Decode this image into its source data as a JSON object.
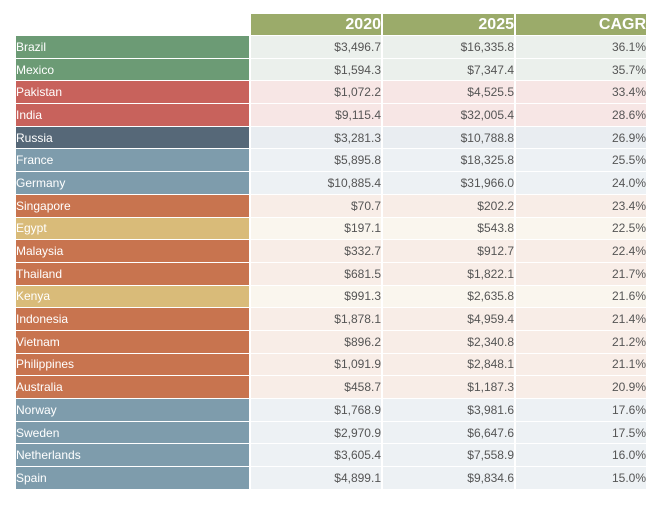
{
  "chart_data": {
    "type": "table",
    "columns": [
      "",
      "2020",
      "2025",
      "CAGR"
    ],
    "colors": {
      "header": "#9bab6a",
      "green": "#6c9b75",
      "red": "#c8625c",
      "darkslate": "#566878",
      "slate": "#7e9cac",
      "orange": "#c8744f",
      "sand": "#d9bb79"
    },
    "rows": [
      {
        "country": "Brazil",
        "v2020": "$3,496.7",
        "v2025": "$16,335.8",
        "cagr": "36.1%",
        "color": "#6c9b75",
        "tint": "#ebf0ec"
      },
      {
        "country": "Mexico",
        "v2020": "$1,594.3",
        "v2025": "$7,347.4",
        "cagr": "35.7%",
        "color": "#6c9b75",
        "tint": "#ebf0ec"
      },
      {
        "country": "Pakistan",
        "v2020": "$1,072.2",
        "v2025": "$4,525.5",
        "cagr": "33.4%",
        "color": "#c8625c",
        "tint": "#f7e6e5"
      },
      {
        "country": "India",
        "v2020": "$9,115.4",
        "v2025": "$32,005.4",
        "cagr": "28.6%",
        "color": "#c8625c",
        "tint": "#f7e6e5"
      },
      {
        "country": "Russia",
        "v2020": "$3,281.3",
        "v2025": "$10,788.8",
        "cagr": "26.9%",
        "color": "#566878",
        "tint": "#e9edf1"
      },
      {
        "country": "France",
        "v2020": "$5,895.8",
        "v2025": "$18,325.8",
        "cagr": "25.5%",
        "color": "#7e9cac",
        "tint": "#edf1f4"
      },
      {
        "country": "Germany",
        "v2020": "$10,885.4",
        "v2025": "$31,966.0",
        "cagr": "24.0%",
        "color": "#7e9cac",
        "tint": "#edf1f4"
      },
      {
        "country": "Singapore",
        "v2020": "$70.7",
        "v2025": "$202.2",
        "cagr": "23.4%",
        "color": "#c8744f",
        "tint": "#f8ede7"
      },
      {
        "country": "Egypt",
        "v2020": "$197.1",
        "v2025": "$543.8",
        "cagr": "22.5%",
        "color": "#d9bb79",
        "tint": "#faf6ee"
      },
      {
        "country": "Malaysia",
        "v2020": "$332.7",
        "v2025": "$912.7",
        "cagr": "22.4%",
        "color": "#c8744f",
        "tint": "#f8ede7"
      },
      {
        "country": "Thailand",
        "v2020": "$681.5",
        "v2025": "$1,822.1",
        "cagr": "21.7%",
        "color": "#c8744f",
        "tint": "#f8ede7"
      },
      {
        "country": "Kenya",
        "v2020": "$991.3",
        "v2025": "$2,635.8",
        "cagr": "21.6%",
        "color": "#d9bb79",
        "tint": "#faf6ee"
      },
      {
        "country": "Indonesia",
        "v2020": "$1,878.1",
        "v2025": "$4,959.4",
        "cagr": "21.4%",
        "color": "#c8744f",
        "tint": "#f8ede7"
      },
      {
        "country": "Vietnam",
        "v2020": "$896.2",
        "v2025": "$2,340.8",
        "cagr": "21.2%",
        "color": "#c8744f",
        "tint": "#f8ede7"
      },
      {
        "country": "Philippines",
        "v2020": "$1,091.9",
        "v2025": "$2,848.1",
        "cagr": "21.1%",
        "color": "#c8744f",
        "tint": "#f8ede7"
      },
      {
        "country": "Australia",
        "v2020": "$458.7",
        "v2025": "$1,187.3",
        "cagr": "20.9%",
        "color": "#c8744f",
        "tint": "#f8ede7"
      },
      {
        "country": "Norway",
        "v2020": "$1,768.9",
        "v2025": "$3,981.6",
        "cagr": "17.6%",
        "color": "#7e9cac",
        "tint": "#edf1f4"
      },
      {
        "country": "Sweden",
        "v2020": "$2,970.9",
        "v2025": "$6,647.6",
        "cagr": "17.5%",
        "color": "#7e9cac",
        "tint": "#edf1f4"
      },
      {
        "country": "Netherlands",
        "v2020": "$3,605.4",
        "v2025": "$7,558.9",
        "cagr": "16.0%",
        "color": "#7e9cac",
        "tint": "#edf1f4"
      },
      {
        "country": "Spain",
        "v2020": "$4,899.1",
        "v2025": "$9,834.6",
        "cagr": "15.0%",
        "color": "#7e9cac",
        "tint": "#edf1f4"
      }
    ]
  }
}
